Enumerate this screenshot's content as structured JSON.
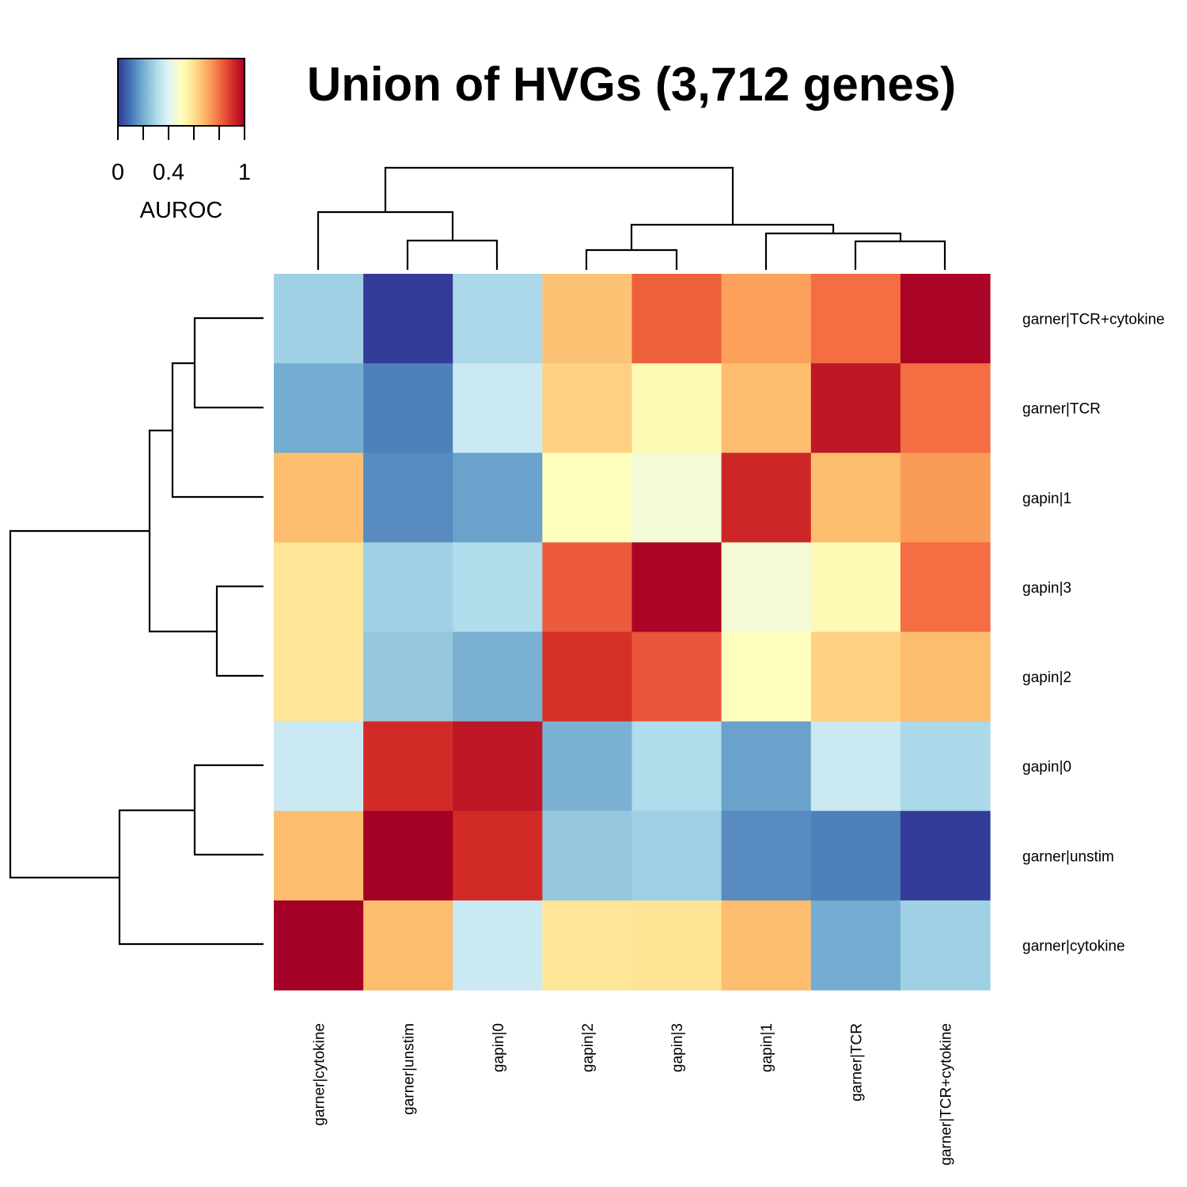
{
  "chart_data": {
    "type": "heatmap",
    "title": "Union of HVGs (3,712 genes)",
    "legend": {
      "title": "AUROC",
      "tick_labels": [
        "0",
        "0.4",
        "1"
      ],
      "range": [
        0,
        1
      ],
      "placement": "top-left",
      "palette": [
        "#313695",
        "#4575b4",
        "#74add1",
        "#abd9e9",
        "#e0f3f8",
        "#ffffbf",
        "#fee090",
        "#fdae61",
        "#f46d43",
        "#d73027",
        "#a50026"
      ]
    },
    "columns": [
      "garner|cytokine",
      "garner|unstim",
      "gapin|0",
      "gapin|2",
      "gapin|3",
      "gapin|1",
      "garner|TCR",
      "garner|TCR+cytokine"
    ],
    "rows": [
      "garner|TCR+cytokine",
      "garner|TCR",
      "gapin|1",
      "gapin|3",
      "gapin|2",
      "gapin|0",
      "garner|unstim",
      "garner|cytokine"
    ],
    "values": [
      [
        0.28,
        0.01,
        0.3,
        0.66,
        0.82,
        0.72,
        0.8,
        0.99
      ],
      [
        0.2,
        0.12,
        0.36,
        0.63,
        0.52,
        0.67,
        0.95,
        0.8
      ],
      [
        0.67,
        0.14,
        0.18,
        0.5,
        0.46,
        0.92,
        0.67,
        0.73
      ],
      [
        0.58,
        0.28,
        0.31,
        0.83,
        0.99,
        0.46,
        0.52,
        0.8
      ],
      [
        0.58,
        0.26,
        0.21,
        0.9,
        0.84,
        0.5,
        0.63,
        0.67
      ],
      [
        0.36,
        0.91,
        0.95,
        0.21,
        0.31,
        0.18,
        0.36,
        0.3
      ],
      [
        0.67,
        1.0,
        0.91,
        0.26,
        0.28,
        0.14,
        0.12,
        0.01
      ],
      [
        1.0,
        0.67,
        0.36,
        0.58,
        0.59,
        0.67,
        0.2,
        0.28
      ]
    ],
    "row_dendrogram": {
      "labels": [
        "garner|TCR+cytokine",
        "garner|TCR",
        "gapin|1",
        "gapin|3",
        "gapin|2",
        "gapin|0",
        "garner|unstim",
        "garner|cytokine"
      ]
    },
    "col_dendrogram": {
      "labels": [
        "garner|cytokine",
        "garner|unstim",
        "gapin|0",
        "gapin|2",
        "gapin|3",
        "gapin|1",
        "garner|TCR",
        "garner|TCR+cytokine"
      ]
    }
  }
}
